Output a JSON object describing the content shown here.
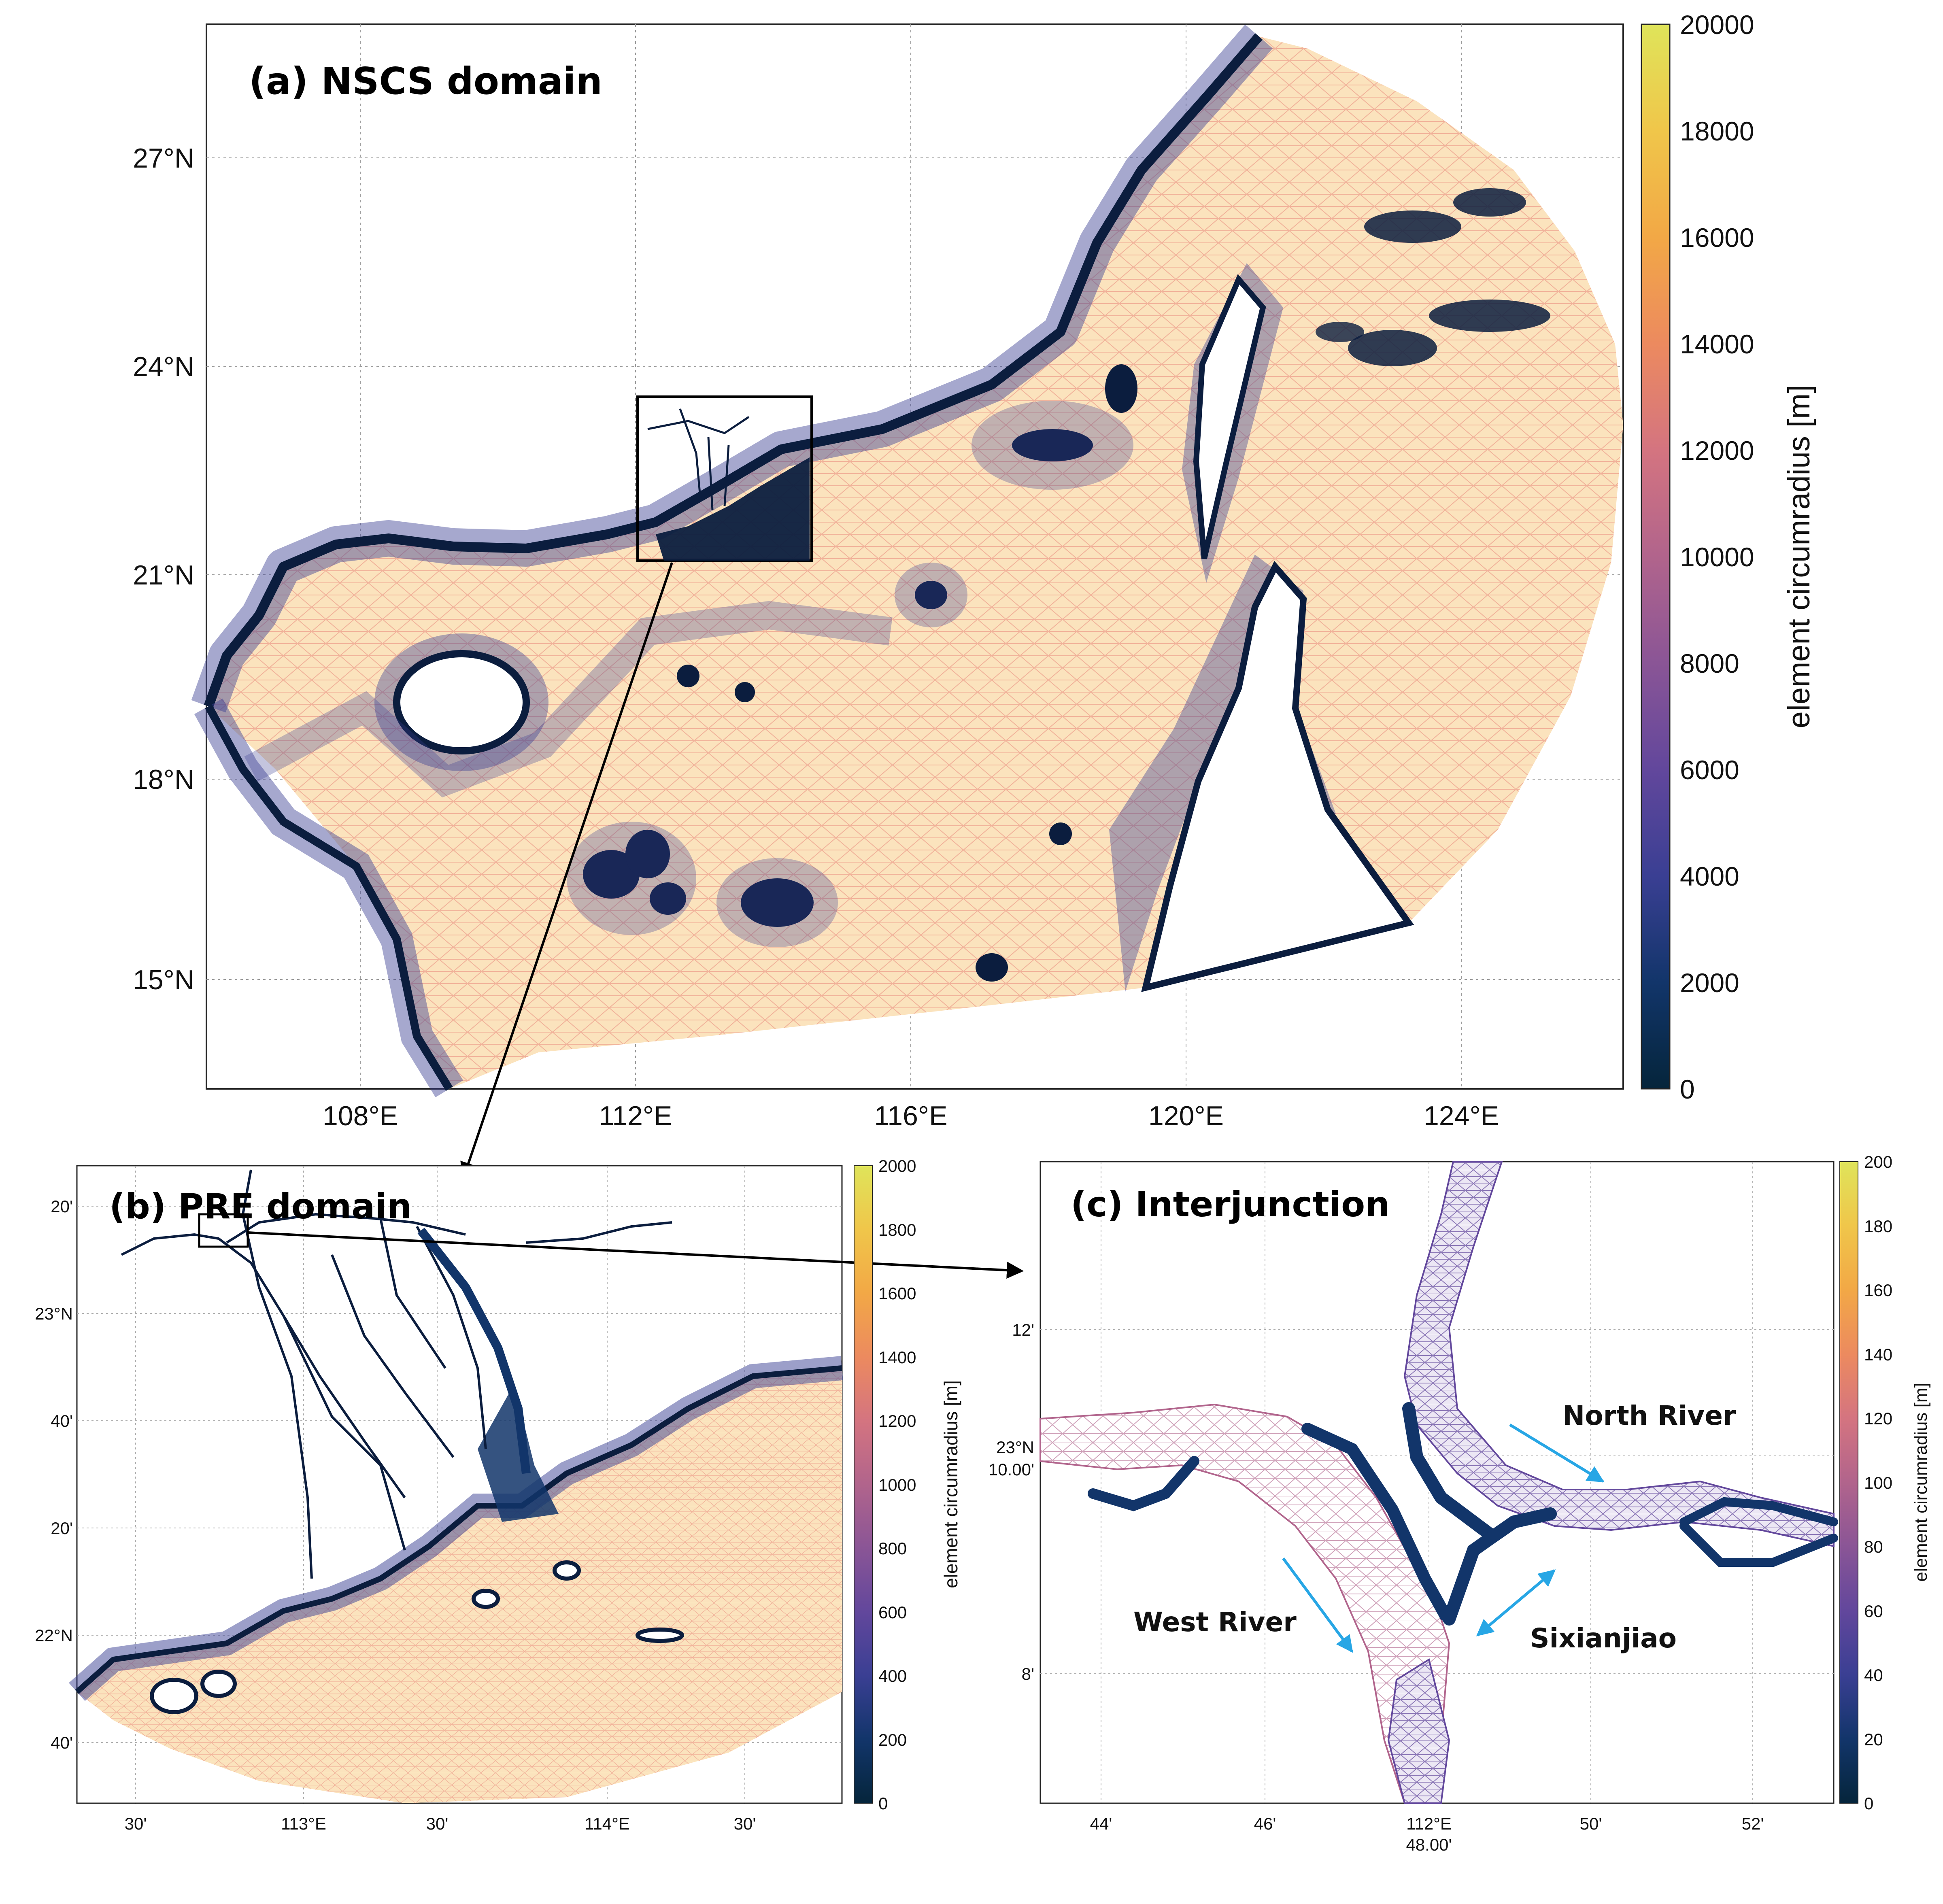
{
  "panels": {
    "a": {
      "title": "(a) NSCS domain",
      "lat_ticks": [
        "27°N",
        "24°N",
        "21°N",
        "18°N",
        "15°N"
      ],
      "lon_ticks": [
        "108°E",
        "112°E",
        "116°E",
        "120°E",
        "124°E"
      ],
      "colorbar": {
        "label": "element circumradius [m]",
        "ticks": [
          "20000",
          "18000",
          "16000",
          "14000",
          "12000",
          "10000",
          "8000",
          "6000",
          "4000",
          "2000",
          "0"
        ]
      }
    },
    "b": {
      "title": "(b) PRE domain",
      "lat_ticks": [
        "20'",
        "23°N",
        "40'",
        "20'",
        "22°N",
        "40'"
      ],
      "lon_ticks": [
        "30'",
        "113°E",
        "30'",
        "114°E",
        "30'"
      ],
      "colorbar": {
        "label": "element circumradius [m]",
        "ticks": [
          "2000",
          "1800",
          "1600",
          "1400",
          "1200",
          "1000",
          "800",
          "600",
          "400",
          "200",
          "0"
        ]
      }
    },
    "c": {
      "title": "(c) Interjunction",
      "lat_ticks": [
        "12'",
        "23°N",
        "10.00'",
        "8'"
      ],
      "lon_ticks": [
        "44'",
        "46'",
        "112°E",
        "48.00'",
        "50'",
        "52'"
      ],
      "labels": [
        "North River",
        "West River",
        "Sixianjiao"
      ],
      "colorbar": {
        "label": "element circumradius [m]",
        "ticks": [
          "200",
          "180",
          "160",
          "140",
          "120",
          "100",
          "80",
          "60",
          "40",
          "20",
          "0"
        ]
      }
    }
  },
  "colors": {
    "colormap": [
      "#05253b",
      "#12356a",
      "#3a3f93",
      "#62479c",
      "#8a5596",
      "#b1648c",
      "#d47480",
      "#ec8a5f",
      "#f2a846",
      "#f0c64a",
      "#dfe45a"
    ],
    "mesh_fine": "#0b1d3e",
    "mesh_coarse": "#f5d7a0",
    "arrow_blue": "#27a6e5"
  }
}
